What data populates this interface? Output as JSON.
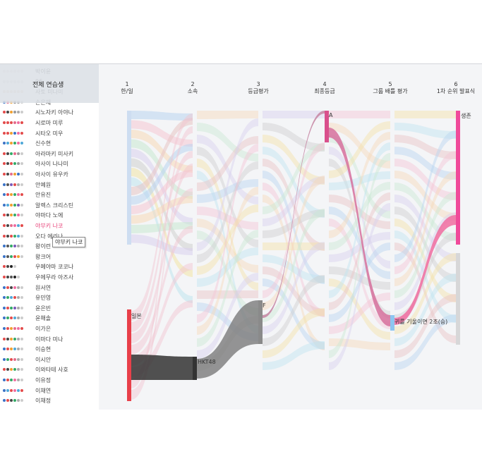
{
  "selector": {
    "label": "전체 연습생"
  },
  "trainees": [
    {
      "name": "박이윤",
      "colors": [
        "#e8e0e4",
        "#e8e0e4",
        "#e8e0e4",
        "#e8e0e4",
        "#e8e0e4",
        "#e8e0e4"
      ]
    },
    {
      "name": "96",
      "colors": [
        "#e0e0e0",
        "#e0e0e0",
        "#e0e0e0",
        "#e0e0e0",
        "#e0e0e0",
        "#e0e0e0"
      ]
    },
    {
      "name": "사토 미나미",
      "colors": [
        "#e8d8c8",
        "#e8d8c8",
        "#e8d8c8",
        "#e8d8c8",
        "#e8d8c8",
        "#e8d8c8"
      ]
    },
    {
      "name": "손은채",
      "colors": [
        "#3b73c6",
        "#e46c8c",
        "#f0a030",
        "#888888",
        "#999999",
        "#cccccc"
      ]
    },
    {
      "name": "시노자키 아야나",
      "colors": [
        "#e34b4b",
        "#444444",
        "#f0a030",
        "#9a9a9a",
        "#aaaaaa",
        "#cccccc"
      ]
    },
    {
      "name": "시로마 미루",
      "colors": [
        "#e34b4b",
        "#e34b4b",
        "#e34b4b",
        "#e46c8c",
        "#f06ca0",
        "#e34b4b"
      ]
    },
    {
      "name": "시타오 미우",
      "colors": [
        "#e34b4b",
        "#e34b4b",
        "#f0a030",
        "#3b73c6",
        "#f06ca0",
        "#e34b4b"
      ]
    },
    {
      "name": "신수현",
      "colors": [
        "#3b73c6",
        "#4fa8d8",
        "#f0a030",
        "#33aa66",
        "#f06ca0",
        "#4fa8d8"
      ]
    },
    {
      "name": "아라마키 미사키",
      "colors": [
        "#e34b4b",
        "#444444",
        "#33aa66",
        "#e46c8c",
        "#9a9a9a",
        "#cccccc"
      ]
    },
    {
      "name": "아사이 나나미",
      "colors": [
        "#e34b4b",
        "#444444",
        "#e34b4b",
        "#33aa66",
        "#9a9a9a",
        "#cccccc"
      ]
    },
    {
      "name": "아사이 유우카",
      "colors": [
        "#e34b4b",
        "#444444",
        "#e46c8c",
        "#f0a030",
        "#3b73c6",
        "#cccccc"
      ]
    },
    {
      "name": "안예원",
      "colors": [
        "#3b73c6",
        "#555555",
        "#7a5ab8",
        "#e34b4b",
        "#aaaaaa",
        "#cccccc"
      ]
    },
    {
      "name": "안유진",
      "colors": [
        "#3b73c6",
        "#e34b4b",
        "#f0a030",
        "#33aa66",
        "#f06ca0",
        "#e34b4b"
      ]
    },
    {
      "name": "알렉스 크리스틴",
      "colors": [
        "#3b73c6",
        "#4fa8d8",
        "#f0a030",
        "#33aa66",
        "#7a5ab8",
        "#cccccc"
      ]
    },
    {
      "name": "야마다 노에",
      "colors": [
        "#e34b4b",
        "#444444",
        "#f0a030",
        "#33aa66",
        "#f06ca0",
        "#cccccc"
      ]
    },
    {
      "name": "야부키 나코",
      "colors": [
        "#e34b4b",
        "#444444",
        "#e46c8c",
        "#f06ca0",
        "#4fa8d8",
        "#e34b4b"
      ]
    },
    {
      "name": "오다 에리나",
      "colors": [
        "#e34b4b",
        "#444444",
        "#e34b4b",
        "#33aa66",
        "#4fa8d8",
        "#cccccc"
      ]
    },
    {
      "name": "왕이런",
      "colors": [
        "#3b73c6",
        "#555555",
        "#33aa66",
        "#7a5ab8",
        "#aaaaaa",
        "#cccccc"
      ]
    },
    {
      "name": "왕크어",
      "colors": [
        "#3b73c6",
        "#555555",
        "#33aa66",
        "#e34b4b",
        "#f0a030",
        "#cccccc"
      ]
    },
    {
      "name": "우메야마 코코나",
      "colors": [
        "#e34b4b",
        "#444444",
        "#222222",
        "#cccccc"
      ]
    },
    {
      "name": "우에무라 아즈사",
      "colors": [
        "#e34b4b",
        "#444444",
        "#555555",
        "#222222",
        "#cccccc"
      ]
    },
    {
      "name": "원서연",
      "colors": [
        "#3b73c6",
        "#e34b4b",
        "#444444",
        "#f06ca0",
        "#aaaaaa",
        "#cccccc"
      ]
    },
    {
      "name": "유민영",
      "colors": [
        "#3b73c6",
        "#33aa66",
        "#4fa8d8",
        "#e34b4b",
        "#aaaaaa",
        "#cccccc"
      ]
    },
    {
      "name": "윤은빈",
      "colors": [
        "#3b73c6",
        "#e34b4b",
        "#33aa66",
        "#7a5ab8",
        "#aaaaaa",
        "#cccccc"
      ]
    },
    {
      "name": "윤해솔",
      "colors": [
        "#3b73c6",
        "#33aa66",
        "#e34b4b",
        "#4fa8d8",
        "#aaaaaa",
        "#cccccc"
      ]
    },
    {
      "name": "이가은",
      "colors": [
        "#3b73c6",
        "#e34b4b",
        "#f0a030",
        "#e46c8c",
        "#f06ca0",
        "#e34b4b"
      ]
    },
    {
      "name": "이마다 미나",
      "colors": [
        "#e34b4b",
        "#444444",
        "#f0a030",
        "#33aa66",
        "#aaaaaa",
        "#cccccc"
      ]
    },
    {
      "name": "이승현",
      "colors": [
        "#3b73c6",
        "#e34b4b",
        "#f0a030",
        "#4fa8d8",
        "#aaaaaa",
        "#cccccc"
      ]
    },
    {
      "name": "이시안",
      "colors": [
        "#3b73c6",
        "#33aa66",
        "#e34b4b",
        "#e46c8c",
        "#aaaaaa",
        "#cccccc"
      ]
    },
    {
      "name": "이와타테 사호",
      "colors": [
        "#e34b4b",
        "#444444",
        "#f0a030",
        "#33aa66",
        "#aaaaaa",
        "#cccccc"
      ]
    },
    {
      "name": "이유정",
      "colors": [
        "#3b73c6",
        "#e34b4b",
        "#33aa66",
        "#f06ca0",
        "#aaaaaa",
        "#cccccc"
      ]
    },
    {
      "name": "이채연",
      "colors": [
        "#3b73c6",
        "#4fa8d8",
        "#e34b4b",
        "#f06ca0",
        "#4fa8d8",
        "#e34b4b"
      ]
    },
    {
      "name": "이채정",
      "colors": [
        "#3b73c6",
        "#e34b4b",
        "#444444",
        "#33aa66",
        "#aaaaaa",
        "#cccccc"
      ]
    }
  ],
  "highlighted": "야부키 나코",
  "tooltip": "야부키 나코",
  "stages": [
    {
      "num": "1",
      "label": "한/일"
    },
    {
      "num": "2",
      "label": "소속"
    },
    {
      "num": "3",
      "label": "등급평가"
    },
    {
      "num": "4",
      "label": "최종등급"
    },
    {
      "num": "5",
      "label": "그룹 배틀 평가"
    },
    {
      "num": "6",
      "label": "1차 순위 발표식"
    }
  ],
  "nodes": {
    "japan": "일본",
    "hkt48": "HKT48",
    "grade_f": "F",
    "grade_a": "A",
    "team": "귀를 기울이면 2조(승)",
    "survive": "생존"
  },
  "colors": {
    "accent": "#e8467c",
    "japan": "#e8404a",
    "hkt48": "#333333",
    "grade_f": "#8a8a8a",
    "grade_a": "#d94f8c",
    "team": "#8ec6f0",
    "survive": "#f04a9a"
  }
}
